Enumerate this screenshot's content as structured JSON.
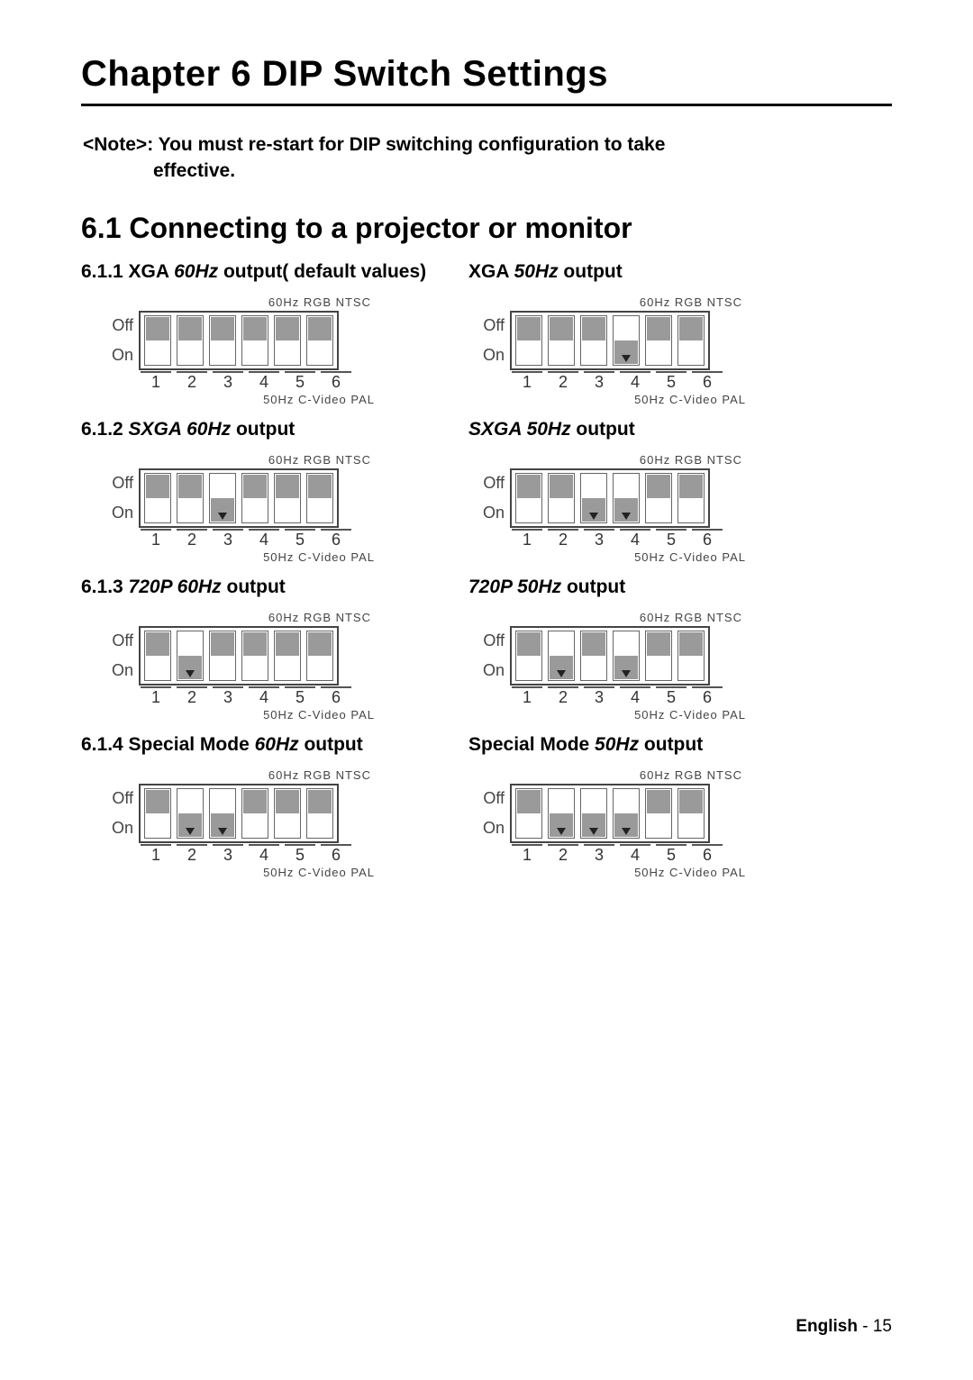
{
  "chapter_title": "Chapter 6   DIP Switch Settings",
  "note_line1": "<Note>: You must re-start for DIP switching configuration to take",
  "note_line2": "effective.",
  "section_title": "6.1 Connecting to a projector or monitor",
  "rows": [
    {
      "left_prefix": "6.1.1 XGA ",
      "left_italic": "60Hz",
      "left_suffix": " output( default values)",
      "right_prefix": "XGA ",
      "right_italic": "50Hz",
      "right_suffix": " output",
      "left_sw": [
        "off",
        "off",
        "off",
        "off",
        "off",
        "off"
      ],
      "right_sw": [
        "off",
        "off",
        "off",
        "on",
        "off",
        "off"
      ]
    },
    {
      "left_prefix": "6.1.2 ",
      "left_italic": "SXGA 60Hz",
      "left_suffix": " output",
      "right_prefix": "",
      "right_italic": "SXGA 50Hz",
      "right_suffix": " output",
      "left_sw": [
        "off",
        "off",
        "on",
        "off",
        "off",
        "off"
      ],
      "right_sw": [
        "off",
        "off",
        "on",
        "on",
        "off",
        "off"
      ]
    },
    {
      "left_prefix": "6.1.3 ",
      "left_italic": "720P 60Hz",
      "left_suffix": " output",
      "right_prefix": "",
      "right_italic": "720P 50Hz",
      "right_suffix": " output",
      "left_sw": [
        "off",
        "on",
        "off",
        "off",
        "off",
        "off"
      ],
      "right_sw": [
        "off",
        "on",
        "off",
        "on",
        "off",
        "off"
      ]
    },
    {
      "left_prefix": "6.1.4 Special Mode ",
      "left_italic": "60Hz",
      "left_suffix": " output",
      "right_prefix": "Special Mode ",
      "right_italic": "50Hz",
      "right_suffix": " output",
      "left_sw": [
        "off",
        "on",
        "on",
        "off",
        "off",
        "off"
      ],
      "right_sw": [
        "off",
        "on",
        "on",
        "on",
        "off",
        "off"
      ]
    }
  ],
  "dip_labels": {
    "top": "60Hz  RGB NTSC",
    "bottom": "50Hz C-Video PAL",
    "off": "Off",
    "on": "On",
    "numbers": [
      "1",
      "2",
      "3",
      "4",
      "5",
      "6"
    ]
  },
  "footer_label": "English",
  "footer_sep": "  -  ",
  "footer_page": "15"
}
